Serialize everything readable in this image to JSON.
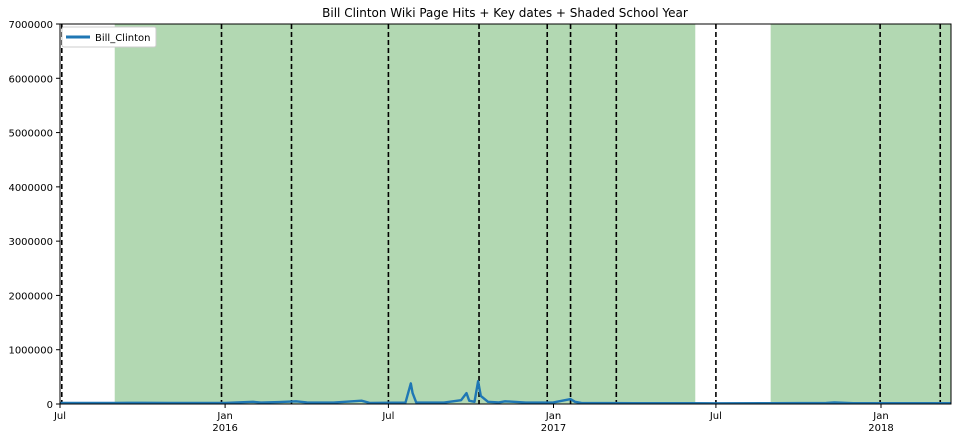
{
  "chart_data": {
    "type": "line",
    "title": "Bill Clinton Wiki Page Hits + Key dates + Shaded School Year",
    "xlabel": "",
    "ylabel": "",
    "xlim": [
      "2015-07-01",
      "2018-03-20"
    ],
    "ylim": [
      0,
      7000000
    ],
    "yticks": [
      0,
      1000000,
      2000000,
      3000000,
      4000000,
      5000000,
      6000000,
      7000000
    ],
    "xticks": [
      {
        "date": "2015-07-01",
        "label": "Jul",
        "year": ""
      },
      {
        "date": "2016-01-01",
        "label": "Jan",
        "year": "2016"
      },
      {
        "date": "2016-07-01",
        "label": "Jul",
        "year": ""
      },
      {
        "date": "2017-01-01",
        "label": "Jan",
        "year": "2017"
      },
      {
        "date": "2017-07-01",
        "label": "Jul",
        "year": ""
      },
      {
        "date": "2018-01-01",
        "label": "Jan",
        "year": "2018"
      }
    ],
    "grid": false,
    "legend": {
      "position": "top-left",
      "entries": [
        "Bill_Clinton"
      ]
    },
    "colors": {
      "line": "#1f77b4",
      "shade": "#b2d8b2",
      "vline": "#000000"
    },
    "shaded_school_years": [
      {
        "start": "2015-08-31",
        "end": "2016-10-01"
      },
      {
        "start": "2016-08-02",
        "end": "2017-06-08"
      },
      {
        "start": "2017-08-31",
        "end": "2018-03-20"
      }
    ],
    "key_dates": [
      "2015-07-03",
      "2015-12-28",
      "2016-03-15",
      "2016-07-01",
      "2016-10-10",
      "2016-12-25",
      "2017-01-20",
      "2017-03-12",
      "2017-07-01",
      "2017-12-31",
      "2018-03-08"
    ],
    "series": [
      {
        "name": "Bill_Clinton",
        "points": [
          [
            "2015-07-01",
            20000
          ],
          [
            "2015-08-01",
            18000
          ],
          [
            "2015-09-01",
            20000
          ],
          [
            "2015-10-01",
            22000
          ],
          [
            "2015-11-01",
            20000
          ],
          [
            "2015-12-01",
            18000
          ],
          [
            "2016-01-01",
            20000
          ],
          [
            "2016-02-01",
            40000
          ],
          [
            "2016-02-10",
            25000
          ],
          [
            "2016-03-01",
            35000
          ],
          [
            "2016-03-20",
            50000
          ],
          [
            "2016-04-01",
            30000
          ],
          [
            "2016-05-01",
            25000
          ],
          [
            "2016-06-01",
            60000
          ],
          [
            "2016-06-10",
            20000
          ],
          [
            "2016-07-20",
            25000
          ],
          [
            "2016-07-26",
            380000
          ],
          [
            "2016-07-28",
            200000
          ],
          [
            "2016-08-01",
            30000
          ],
          [
            "2016-09-01",
            25000
          ],
          [
            "2016-09-20",
            70000
          ],
          [
            "2016-09-26",
            200000
          ],
          [
            "2016-09-29",
            60000
          ],
          [
            "2016-10-05",
            40000
          ],
          [
            "2016-10-09",
            420000
          ],
          [
            "2016-10-12",
            150000
          ],
          [
            "2016-10-20",
            40000
          ],
          [
            "2016-11-01",
            30000
          ],
          [
            "2016-11-08",
            50000
          ],
          [
            "2016-12-01",
            25000
          ],
          [
            "2017-01-01",
            30000
          ],
          [
            "2017-01-20",
            90000
          ],
          [
            "2017-01-25",
            40000
          ],
          [
            "2017-02-01",
            20000
          ],
          [
            "2017-04-01",
            15000
          ],
          [
            "2017-06-01",
            15000
          ],
          [
            "2017-07-01",
            12000
          ],
          [
            "2017-09-01",
            15000
          ],
          [
            "2017-11-01",
            20000
          ],
          [
            "2017-11-10",
            30000
          ],
          [
            "2017-12-01",
            15000
          ],
          [
            "2018-01-01",
            15000
          ],
          [
            "2018-02-01",
            15000
          ],
          [
            "2018-03-20",
            15000
          ]
        ]
      }
    ]
  }
}
